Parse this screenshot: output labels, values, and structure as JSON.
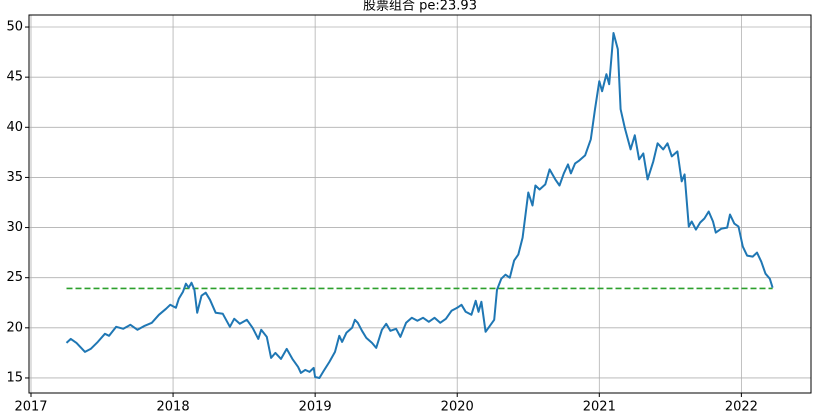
{
  "chart_data": {
    "type": "line",
    "title": "股票组合  pe:23.93",
    "x": [
      2017.25,
      2017.28,
      2017.32,
      2017.38,
      2017.42,
      2017.47,
      2017.52,
      2017.55,
      2017.6,
      2017.65,
      2017.7,
      2017.75,
      2017.8,
      2017.85,
      2017.9,
      2017.95,
      2017.98,
      2018.02,
      2018.04,
      2018.07,
      2018.09,
      2018.11,
      2018.13,
      2018.15,
      2018.17,
      2018.2,
      2018.23,
      2018.26,
      2018.3,
      2018.35,
      2018.4,
      2018.43,
      2018.47,
      2018.52,
      2018.56,
      2018.6,
      2018.62,
      2018.66,
      2018.69,
      2018.72,
      2018.76,
      2018.8,
      2018.84,
      2018.88,
      2018.9,
      2018.93,
      2018.96,
      2018.99,
      2019.0,
      2019.03,
      2019.06,
      2019.1,
      2019.14,
      2019.17,
      2019.19,
      2019.22,
      2019.26,
      2019.28,
      2019.3,
      2019.33,
      2019.36,
      2019.4,
      2019.43,
      2019.47,
      2019.5,
      2019.53,
      2019.57,
      2019.6,
      2019.64,
      2019.68,
      2019.72,
      2019.76,
      2019.8,
      2019.84,
      2019.88,
      2019.92,
      2019.96,
      2020.0,
      2020.03,
      2020.06,
      2020.1,
      2020.13,
      2020.15,
      2020.17,
      2020.2,
      2020.23,
      2020.26,
      2020.28,
      2020.31,
      2020.34,
      2020.37,
      2020.4,
      2020.43,
      2020.46,
      2020.5,
      2020.53,
      2020.55,
      2020.58,
      2020.62,
      2020.65,
      2020.69,
      2020.72,
      2020.75,
      2020.78,
      2020.8,
      2020.83,
      2020.86,
      2020.9,
      2020.94,
      2020.97,
      2021.0,
      2021.02,
      2021.05,
      2021.07,
      2021.1,
      2021.13,
      2021.15,
      2021.18,
      2021.22,
      2021.25,
      2021.28,
      2021.31,
      2021.34,
      2021.38,
      2021.41,
      2021.45,
      2021.48,
      2021.51,
      2021.55,
      2021.58,
      2021.6,
      2021.63,
      2021.65,
      2021.68,
      2021.71,
      2021.74,
      2021.77,
      2021.8,
      2021.82,
      2021.86,
      2021.9,
      2021.92,
      2021.95,
      2021.98,
      2022.01,
      2022.04,
      2022.08,
      2022.11,
      2022.14,
      2022.17,
      2022.2,
      2022.22
    ],
    "series": [
      {
        "color": "#1f77b4",
        "values": [
          18.5,
          18.9,
          18.5,
          17.6,
          17.9,
          18.6,
          19.4,
          19.2,
          20.1,
          19.9,
          20.3,
          19.8,
          20.2,
          20.5,
          21.3,
          21.9,
          22.3,
          22.0,
          22.9,
          23.6,
          24.4,
          24.0,
          24.5,
          23.8,
          21.5,
          23.2,
          23.5,
          22.8,
          21.5,
          21.4,
          20.1,
          20.9,
          20.4,
          20.8,
          20.0,
          18.9,
          19.8,
          19.1,
          17.0,
          17.5,
          16.9,
          17.9,
          16.9,
          16.1,
          15.5,
          15.8,
          15.6,
          16.0,
          15.1,
          15.0,
          15.7,
          16.6,
          17.6,
          19.2,
          18.6,
          19.5,
          20.0,
          20.8,
          20.5,
          19.7,
          19.0,
          18.5,
          18.0,
          19.8,
          20.4,
          19.7,
          19.9,
          19.1,
          20.5,
          21.0,
          20.7,
          21.0,
          20.6,
          21.0,
          20.5,
          20.9,
          21.7,
          22.0,
          22.3,
          21.6,
          21.3,
          22.7,
          21.6,
          22.6,
          19.6,
          20.2,
          20.8,
          23.8,
          24.9,
          25.3,
          25.0,
          26.7,
          27.3,
          29.0,
          33.5,
          32.2,
          34.2,
          33.8,
          34.3,
          35.8,
          34.8,
          34.2,
          35.4,
          36.3,
          35.4,
          36.4,
          36.7,
          37.2,
          38.8,
          41.8,
          44.6,
          43.6,
          45.3,
          44.3,
          49.4,
          47.8,
          41.8,
          39.9,
          37.8,
          39.2,
          36.8,
          37.4,
          34.8,
          36.6,
          38.4,
          37.8,
          38.4,
          37.1,
          37.6,
          34.6,
          35.3,
          30.1,
          30.6,
          29.8,
          30.5,
          30.9,
          31.6,
          30.6,
          29.5,
          29.9,
          30.0,
          31.3,
          30.4,
          30.1,
          28.1,
          27.2,
          27.1,
          27.5,
          26.6,
          25.4,
          24.9,
          24.0
        ]
      }
    ],
    "hline": {
      "value": 23.93,
      "color": "#2ca02c",
      "style": "dashed"
    },
    "xlim": [
      2016.986,
      2022.49
    ],
    "xticks": [
      2017,
      2018,
      2019,
      2020,
      2021,
      2022
    ],
    "ylim": [
      13.5,
      51.2
    ],
    "yticks": [
      15,
      20,
      25,
      30,
      35,
      40,
      45,
      50
    ],
    "grid": true
  }
}
